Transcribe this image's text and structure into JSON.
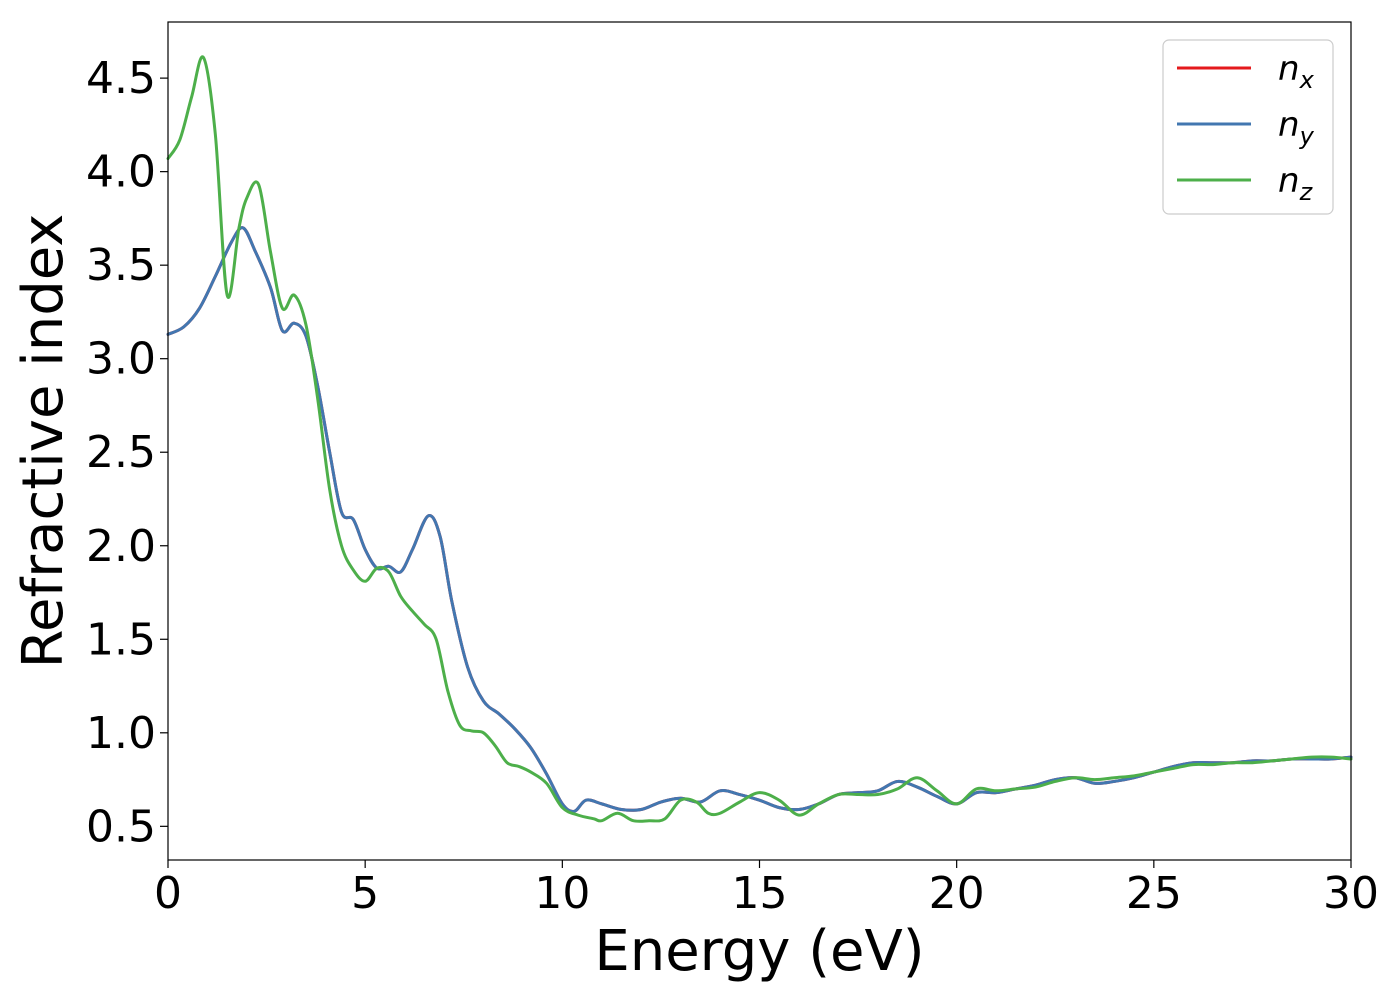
{
  "chart_data": {
    "type": "line",
    "title": "",
    "xlabel": "Energy (eV)",
    "ylabel": "Refractive index",
    "xlim": [
      0,
      30
    ],
    "ylim": [
      0.32,
      4.8
    ],
    "xticks": [
      0,
      5,
      10,
      15,
      20,
      25,
      30
    ],
    "xtick_labels": [
      "0",
      "5",
      "10",
      "15",
      "20",
      "25",
      "30"
    ],
    "yticks": [
      0.5,
      1.0,
      1.5,
      2.0,
      2.5,
      3.0,
      3.5,
      4.0,
      4.5
    ],
    "ytick_labels": [
      "0.5",
      "1.0",
      "1.5",
      "2.0",
      "2.5",
      "3.0",
      "3.5",
      "4.0",
      "4.5"
    ],
    "grid": false,
    "legend_position": "top-right",
    "series": [
      {
        "name": "n_x",
        "legend_base": "n",
        "legend_sub": "x",
        "color": "#e41a1c",
        "x": [
          0,
          0.4,
          0.8,
          1.2,
          1.6,
          1.9,
          2.2,
          2.6,
          2.9,
          3.2,
          3.5,
          3.8,
          4.1,
          4.4,
          4.7,
          5.0,
          5.3,
          5.6,
          5.9,
          6.2,
          6.6,
          6.9,
          7.2,
          7.6,
          8.0,
          8.4,
          8.8,
          9.2,
          9.6,
          10.0,
          10.3,
          10.6,
          11.0,
          11.5,
          12.0,
          12.5,
          13.0,
          13.5,
          14.0,
          14.5,
          15.0,
          15.5,
          16.0,
          16.5,
          17.0,
          17.5,
          18.0,
          18.5,
          19.0,
          19.5,
          20.0,
          20.5,
          21.0,
          21.5,
          22.0,
          22.5,
          23.0,
          23.5,
          24.0,
          24.5,
          25.0,
          25.5,
          26.0,
          26.5,
          27.0,
          27.5,
          28.0,
          28.5,
          29.0,
          29.5,
          30.0
        ],
        "y": [
          3.13,
          3.17,
          3.27,
          3.44,
          3.62,
          3.7,
          3.58,
          3.38,
          3.15,
          3.19,
          3.12,
          2.85,
          2.5,
          2.18,
          2.14,
          1.98,
          1.88,
          1.89,
          1.86,
          1.98,
          2.16,
          2.05,
          1.7,
          1.35,
          1.17,
          1.1,
          1.02,
          0.92,
          0.78,
          0.62,
          0.58,
          0.64,
          0.62,
          0.59,
          0.59,
          0.63,
          0.65,
          0.63,
          0.69,
          0.67,
          0.64,
          0.6,
          0.59,
          0.62,
          0.67,
          0.68,
          0.69,
          0.74,
          0.71,
          0.66,
          0.62,
          0.68,
          0.68,
          0.7,
          0.72,
          0.75,
          0.76,
          0.73,
          0.74,
          0.76,
          0.79,
          0.82,
          0.84,
          0.84,
          0.84,
          0.85,
          0.85,
          0.86,
          0.86,
          0.86,
          0.87
        ]
      },
      {
        "name": "n_y",
        "legend_base": "n",
        "legend_sub": "y",
        "color": "#4277b0",
        "x": [
          0,
          0.4,
          0.8,
          1.2,
          1.6,
          1.9,
          2.2,
          2.6,
          2.9,
          3.2,
          3.5,
          3.8,
          4.1,
          4.4,
          4.7,
          5.0,
          5.3,
          5.6,
          5.9,
          6.2,
          6.6,
          6.9,
          7.2,
          7.6,
          8.0,
          8.4,
          8.8,
          9.2,
          9.6,
          10.0,
          10.3,
          10.6,
          11.0,
          11.5,
          12.0,
          12.5,
          13.0,
          13.5,
          14.0,
          14.5,
          15.0,
          15.5,
          16.0,
          16.5,
          17.0,
          17.5,
          18.0,
          18.5,
          19.0,
          19.5,
          20.0,
          20.5,
          21.0,
          21.5,
          22.0,
          22.5,
          23.0,
          23.5,
          24.0,
          24.5,
          25.0,
          25.5,
          26.0,
          26.5,
          27.0,
          27.5,
          28.0,
          28.5,
          29.0,
          29.5,
          30.0
        ],
        "y": [
          3.13,
          3.17,
          3.27,
          3.44,
          3.62,
          3.7,
          3.58,
          3.38,
          3.15,
          3.19,
          3.12,
          2.85,
          2.5,
          2.18,
          2.14,
          1.98,
          1.88,
          1.89,
          1.86,
          1.98,
          2.16,
          2.05,
          1.7,
          1.35,
          1.17,
          1.1,
          1.02,
          0.92,
          0.78,
          0.62,
          0.58,
          0.64,
          0.62,
          0.59,
          0.59,
          0.63,
          0.65,
          0.63,
          0.69,
          0.67,
          0.64,
          0.6,
          0.59,
          0.62,
          0.67,
          0.68,
          0.69,
          0.74,
          0.71,
          0.66,
          0.62,
          0.68,
          0.68,
          0.7,
          0.72,
          0.75,
          0.76,
          0.73,
          0.74,
          0.76,
          0.79,
          0.82,
          0.84,
          0.84,
          0.84,
          0.85,
          0.85,
          0.86,
          0.86,
          0.86,
          0.87
        ]
      },
      {
        "name": "n_z",
        "legend_base": "n",
        "legend_sub": "z",
        "color": "#4daf4a",
        "x": [
          0,
          0.3,
          0.6,
          0.9,
          1.2,
          1.5,
          1.8,
          2.0,
          2.3,
          2.6,
          2.9,
          3.2,
          3.5,
          3.8,
          4.1,
          4.4,
          4.7,
          5.0,
          5.3,
          5.6,
          5.9,
          6.2,
          6.5,
          6.8,
          7.1,
          7.4,
          7.7,
          8.0,
          8.3,
          8.6,
          8.9,
          9.2,
          9.6,
          10.0,
          10.4,
          10.8,
          11.0,
          11.4,
          11.8,
          12.2,
          12.6,
          13.0,
          13.4,
          13.7,
          14.0,
          14.5,
          15.0,
          15.5,
          16.0,
          16.5,
          17.0,
          17.5,
          18.0,
          18.5,
          19.0,
          19.5,
          20.0,
          20.5,
          21.0,
          21.5,
          22.0,
          22.5,
          23.0,
          23.5,
          24.0,
          24.5,
          25.0,
          25.5,
          26.0,
          26.5,
          27.0,
          27.5,
          28.0,
          28.5,
          29.0,
          29.5,
          30.0
        ],
        "y": [
          4.07,
          4.17,
          4.4,
          4.61,
          4.2,
          3.34,
          3.7,
          3.86,
          3.93,
          3.57,
          3.27,
          3.34,
          3.18,
          2.78,
          2.3,
          2.0,
          1.87,
          1.81,
          1.88,
          1.86,
          1.73,
          1.65,
          1.58,
          1.5,
          1.22,
          1.04,
          1.01,
          1.0,
          0.93,
          0.84,
          0.82,
          0.79,
          0.73,
          0.6,
          0.56,
          0.54,
          0.53,
          0.57,
          0.53,
          0.53,
          0.54,
          0.64,
          0.63,
          0.57,
          0.57,
          0.63,
          0.68,
          0.64,
          0.56,
          0.62,
          0.67,
          0.67,
          0.67,
          0.7,
          0.76,
          0.69,
          0.62,
          0.7,
          0.69,
          0.7,
          0.71,
          0.74,
          0.76,
          0.75,
          0.76,
          0.77,
          0.79,
          0.81,
          0.83,
          0.83,
          0.84,
          0.84,
          0.85,
          0.86,
          0.87,
          0.87,
          0.86
        ]
      }
    ]
  }
}
